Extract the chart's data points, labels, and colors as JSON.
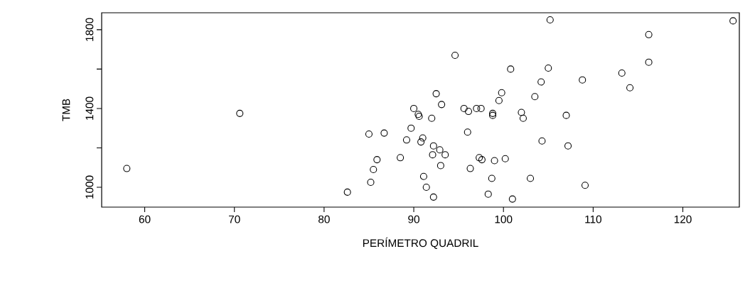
{
  "chart_data": {
    "type": "scatter",
    "xlabel": "PERÍMETRO QUADRIL",
    "ylabel": "TMB",
    "marker": "circle",
    "grid": false,
    "xlim": [
      55.2,
      126.3
    ],
    "ylim": [
      899,
      1886
    ],
    "xticks": [
      60,
      70,
      80,
      90,
      100,
      110,
      120
    ],
    "yticks": [
      1000,
      {
        "value": 1200,
        "label": null
      },
      1400,
      {
        "value": 1600,
        "label": null
      },
      1800
    ],
    "series": [
      {
        "color": "#000000",
        "x": [
          58,
          70.6,
          82.6,
          85,
          85.2,
          85.5,
          85.9,
          86.7,
          88.5,
          89.2,
          89.7,
          90.0,
          90.5,
          90.6,
          90.8,
          91.0,
          91.1,
          91.4,
          92.0,
          92.1,
          92.2,
          92.2,
          92.5,
          92.9,
          93.1,
          93.0,
          93.5,
          94.6,
          95.6,
          96.0,
          96.1,
          96.3,
          97.0,
          97.3,
          97.5,
          97.6,
          98.3,
          98.7,
          98.8,
          98.8,
          99.0,
          99.5,
          99.8,
          100.2,
          100.8,
          101.0,
          102.0,
          102.2,
          103.0,
          103.5,
          104.2,
          104.3,
          105.0,
          105.2,
          107.0,
          107.2,
          108.8,
          109.1,
          113.2,
          114.1,
          116.2,
          116.2,
          125.6
        ],
        "values": [
          1095,
          1375,
          975,
          1270,
          1025,
          1090,
          1140,
          1275,
          1150,
          1240,
          1300,
          1400,
          1370,
          1360,
          1230,
          1250,
          1055,
          1000,
          1350,
          1165,
          1210,
          950,
          1475,
          1190,
          1420,
          1110,
          1165,
          1670,
          1400,
          1280,
          1385,
          1095,
          1400,
          1150,
          1400,
          1140,
          965,
          1045,
          1375,
          1365,
          1135,
          1440,
          1480,
          1145,
          1600,
          940,
          1380,
          1350,
          1045,
          1460,
          1535,
          1235,
          1605,
          1850,
          1365,
          1210,
          1545,
          1010,
          1580,
          1505,
          1775,
          1635,
          1845
        ]
      }
    ]
  }
}
